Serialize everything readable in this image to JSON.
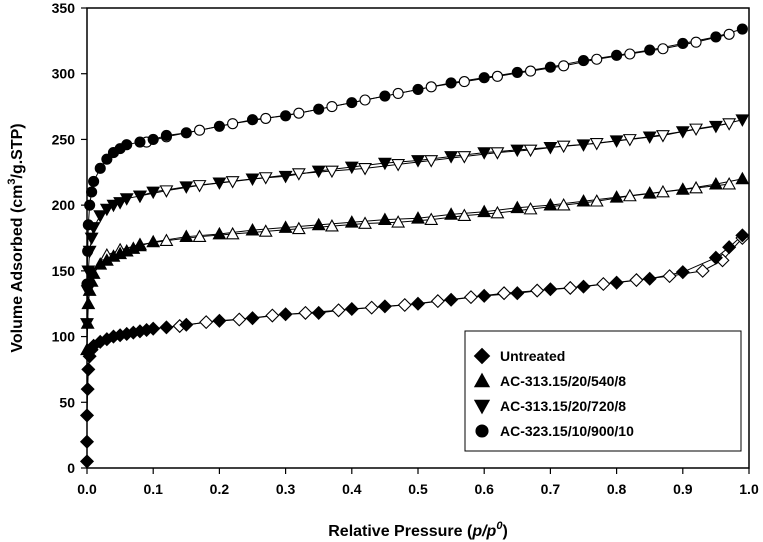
{
  "chart_data": {
    "type": "scatter",
    "xlabel_main": "Relative Pressure (",
    "xlabel_var": "p/p",
    "xlabel_sup": "0",
    "xlabel_close": ")",
    "ylabel_main": "Volume Adsorbed (cm",
    "ylabel_sup": "3",
    "ylabel_rest": "/g.STP)",
    "xlim": [
      0.0,
      1.0
    ],
    "ylim": [
      0,
      350
    ],
    "x_ticks": [
      "0.0",
      "0.1",
      "0.2",
      "0.3",
      "0.4",
      "0.5",
      "0.6",
      "0.7",
      "0.8",
      "0.9",
      "1.0"
    ],
    "y_ticks": [
      "0",
      "50",
      "100",
      "150",
      "200",
      "250",
      "300",
      "350"
    ],
    "grid": false,
    "legend_position": "bottom-right",
    "series": [
      {
        "name": "Untreated",
        "marker": "diamond",
        "adsorption": [
          [
            0.0,
            5
          ],
          [
            0.0,
            20
          ],
          [
            0.0,
            40
          ],
          [
            0.001,
            60
          ],
          [
            0.002,
            75
          ],
          [
            0.004,
            85
          ],
          [
            0.007,
            90
          ],
          [
            0.01,
            93
          ],
          [
            0.02,
            96
          ],
          [
            0.03,
            98
          ],
          [
            0.04,
            100
          ],
          [
            0.05,
            101
          ],
          [
            0.06,
            102
          ],
          [
            0.07,
            103
          ],
          [
            0.08,
            104
          ],
          [
            0.09,
            105
          ],
          [
            0.1,
            106
          ],
          [
            0.12,
            107
          ],
          [
            0.15,
            109
          ],
          [
            0.2,
            112
          ],
          [
            0.25,
            114
          ],
          [
            0.3,
            117
          ],
          [
            0.35,
            118
          ],
          [
            0.4,
            121
          ],
          [
            0.45,
            123
          ],
          [
            0.5,
            125
          ],
          [
            0.55,
            128
          ],
          [
            0.6,
            131
          ],
          [
            0.65,
            133
          ],
          [
            0.7,
            136
          ],
          [
            0.75,
            138
          ],
          [
            0.8,
            141
          ],
          [
            0.85,
            144
          ],
          [
            0.9,
            149
          ],
          [
            0.95,
            160
          ],
          [
            0.97,
            168
          ],
          [
            0.99,
            177
          ]
        ],
        "desorption": [
          [
            0.99,
            175
          ],
          [
            0.96,
            158
          ],
          [
            0.93,
            150
          ],
          [
            0.88,
            146
          ],
          [
            0.83,
            143
          ],
          [
            0.78,
            140
          ],
          [
            0.73,
            137
          ],
          [
            0.68,
            135
          ],
          [
            0.63,
            133
          ],
          [
            0.58,
            130
          ],
          [
            0.53,
            127
          ],
          [
            0.48,
            124
          ],
          [
            0.43,
            122
          ],
          [
            0.38,
            120
          ],
          [
            0.33,
            118
          ],
          [
            0.28,
            116
          ],
          [
            0.23,
            113
          ],
          [
            0.18,
            111
          ],
          [
            0.14,
            108
          ]
        ]
      },
      {
        "name": "AC-313.15/20/540/8",
        "marker": "triangle-up",
        "adsorption": [
          [
            0.0,
            90
          ],
          [
            0.001,
            110
          ],
          [
            0.002,
            125
          ],
          [
            0.004,
            135
          ],
          [
            0.007,
            142
          ],
          [
            0.01,
            148
          ],
          [
            0.02,
            155
          ],
          [
            0.03,
            158
          ],
          [
            0.04,
            161
          ],
          [
            0.05,
            163
          ],
          [
            0.06,
            165
          ],
          [
            0.07,
            167
          ],
          [
            0.08,
            169
          ],
          [
            0.1,
            172
          ],
          [
            0.15,
            176
          ],
          [
            0.2,
            178
          ],
          [
            0.25,
            181
          ],
          [
            0.3,
            183
          ],
          [
            0.35,
            185
          ],
          [
            0.4,
            187
          ],
          [
            0.45,
            189
          ],
          [
            0.5,
            190
          ],
          [
            0.55,
            193
          ],
          [
            0.6,
            195
          ],
          [
            0.65,
            198
          ],
          [
            0.7,
            200
          ],
          [
            0.75,
            203
          ],
          [
            0.8,
            206
          ],
          [
            0.85,
            209
          ],
          [
            0.9,
            212
          ],
          [
            0.95,
            216
          ],
          [
            0.99,
            220
          ]
        ],
        "desorption": [
          [
            0.97,
            216
          ],
          [
            0.92,
            213
          ],
          [
            0.87,
            210
          ],
          [
            0.82,
            207
          ],
          [
            0.77,
            203
          ],
          [
            0.72,
            200
          ],
          [
            0.67,
            197
          ],
          [
            0.62,
            194
          ],
          [
            0.57,
            192
          ],
          [
            0.52,
            189
          ],
          [
            0.47,
            187
          ],
          [
            0.42,
            186
          ],
          [
            0.37,
            184
          ],
          [
            0.32,
            182
          ],
          [
            0.27,
            180
          ],
          [
            0.22,
            178
          ],
          [
            0.17,
            176
          ],
          [
            0.12,
            173
          ],
          [
            0.08,
            170
          ],
          [
            0.05,
            166
          ],
          [
            0.03,
            162
          ]
        ]
      },
      {
        "name": "AC-313.15/20/720/8",
        "marker": "triangle-down",
        "adsorption": [
          [
            0.0,
            110
          ],
          [
            0.001,
            135
          ],
          [
            0.002,
            150
          ],
          [
            0.004,
            165
          ],
          [
            0.007,
            175
          ],
          [
            0.01,
            183
          ],
          [
            0.02,
            192
          ],
          [
            0.03,
            197
          ],
          [
            0.04,
            200
          ],
          [
            0.05,
            202
          ],
          [
            0.06,
            205
          ],
          [
            0.08,
            207
          ],
          [
            0.1,
            210
          ],
          [
            0.15,
            214
          ],
          [
            0.2,
            217
          ],
          [
            0.25,
            220
          ],
          [
            0.3,
            222
          ],
          [
            0.35,
            226
          ],
          [
            0.4,
            229
          ],
          [
            0.45,
            232
          ],
          [
            0.5,
            234
          ],
          [
            0.55,
            237
          ],
          [
            0.6,
            240
          ],
          [
            0.65,
            242
          ],
          [
            0.7,
            244
          ],
          [
            0.75,
            246
          ],
          [
            0.8,
            249
          ],
          [
            0.85,
            252
          ],
          [
            0.9,
            256
          ],
          [
            0.95,
            260
          ],
          [
            0.99,
            265
          ]
        ],
        "desorption": [
          [
            0.97,
            262
          ],
          [
            0.92,
            258
          ],
          [
            0.87,
            253
          ],
          [
            0.82,
            250
          ],
          [
            0.77,
            247
          ],
          [
            0.72,
            245
          ],
          [
            0.67,
            242
          ],
          [
            0.62,
            240
          ],
          [
            0.57,
            237
          ],
          [
            0.52,
            234
          ],
          [
            0.47,
            231
          ],
          [
            0.42,
            228
          ],
          [
            0.37,
            226
          ],
          [
            0.32,
            224
          ],
          [
            0.27,
            221
          ],
          [
            0.22,
            218
          ],
          [
            0.17,
            215
          ],
          [
            0.12,
            211
          ],
          [
            0.08,
            207
          ]
        ]
      },
      {
        "name": "AC-323.15/10/900/10",
        "marker": "circle",
        "adsorption": [
          [
            0.0,
            140
          ],
          [
            0.001,
            165
          ],
          [
            0.002,
            185
          ],
          [
            0.004,
            200
          ],
          [
            0.007,
            210
          ],
          [
            0.01,
            218
          ],
          [
            0.02,
            228
          ],
          [
            0.03,
            235
          ],
          [
            0.04,
            240
          ],
          [
            0.05,
            243
          ],
          [
            0.06,
            246
          ],
          [
            0.08,
            248
          ],
          [
            0.1,
            250
          ],
          [
            0.12,
            253
          ],
          [
            0.15,
            255
          ],
          [
            0.2,
            260
          ],
          [
            0.25,
            265
          ],
          [
            0.3,
            268
          ],
          [
            0.35,
            273
          ],
          [
            0.4,
            278
          ],
          [
            0.45,
            283
          ],
          [
            0.5,
            288
          ],
          [
            0.55,
            293
          ],
          [
            0.6,
            297
          ],
          [
            0.65,
            301
          ],
          [
            0.7,
            305
          ],
          [
            0.75,
            310
          ],
          [
            0.8,
            314
          ],
          [
            0.85,
            318
          ],
          [
            0.9,
            323
          ],
          [
            0.95,
            328
          ],
          [
            0.99,
            334
          ]
        ],
        "desorption": [
          [
            0.97,
            330
          ],
          [
            0.92,
            324
          ],
          [
            0.87,
            319
          ],
          [
            0.82,
            315
          ],
          [
            0.77,
            311
          ],
          [
            0.72,
            306
          ],
          [
            0.67,
            302
          ],
          [
            0.62,
            298
          ],
          [
            0.57,
            294
          ],
          [
            0.52,
            290
          ],
          [
            0.47,
            285
          ],
          [
            0.42,
            280
          ],
          [
            0.37,
            275
          ],
          [
            0.32,
            270
          ],
          [
            0.27,
            266
          ],
          [
            0.22,
            262
          ],
          [
            0.17,
            257
          ],
          [
            0.12,
            252
          ],
          [
            0.09,
            248
          ]
        ]
      }
    ]
  }
}
